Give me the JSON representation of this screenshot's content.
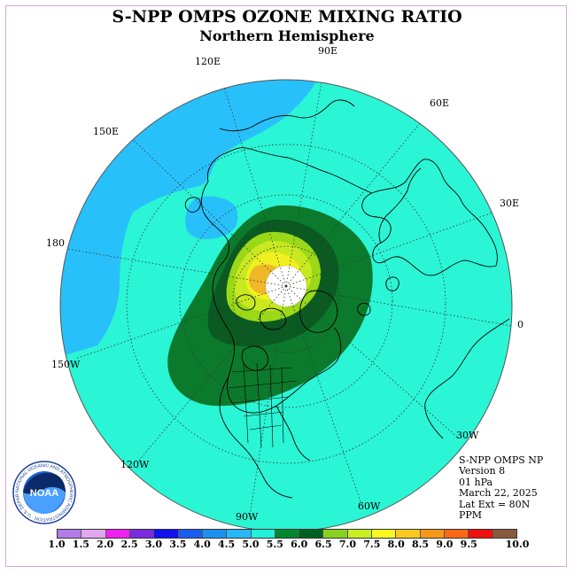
{
  "title": "S-NPP OMPS OZONE MIXING RATIO",
  "subtitle": "Northern Hemisphere",
  "longitude_labels": {
    "lon_90e": "90E",
    "lon_60e": "60E",
    "lon_30e": "30E",
    "lon_0": "0",
    "lon_30w": "30W",
    "lon_60w": "60W",
    "lon_90w": "90W",
    "lon_120w": "120W",
    "lon_150w": "150W",
    "lon_180": "180",
    "lon_150e": "150E",
    "lon_120e": "120E"
  },
  "info": {
    "instrument": "S-NPP OMPS NP",
    "version": "Version 8",
    "level": "01 hPa",
    "date": "March 22, 2025",
    "lat_ext": "Lat Ext = 80N",
    "units": "PPM"
  },
  "logo": {
    "text": "NOAA",
    "ring_text": "NATIONAL OCEANIC AND ATMOSPHERIC ADMINISTRATION · U.S. DEPARTMENT OF COMMERCE"
  },
  "colorbar": {
    "labels": [
      "1.0",
      "1.5",
      "2.0",
      "2.5",
      "3.0",
      "3.5",
      "4.0",
      "4.5",
      "5.0",
      "5.5",
      "6.0",
      "6.5",
      "7.0",
      "7.5",
      "8.0",
      "8.5",
      "9.0",
      "9.5",
      "10.0"
    ],
    "colors": [
      "#b47ae6",
      "#e0a8f0",
      "#f020f0",
      "#7a2be0",
      "#1010f0",
      "#1a5ef0",
      "#1e90f0",
      "#28b8f8",
      "#22f0d8",
      "#008830",
      "#006020",
      "#88d020",
      "#c8f020",
      "#f8f820",
      "#f8c820",
      "#f89818",
      "#f86818",
      "#f01010",
      "#8b5a3c"
    ]
  },
  "map_colors": {
    "ocean_teal": "#2af5d5",
    "light_blue": "#28c0fa",
    "green_dark": "#0a5a22",
    "green_mid": "#0c7a2c",
    "yellow_green": "#c8e820",
    "lime": "#9ad818",
    "yellow": "#f0f020",
    "orange": "#f0b828",
    "pole_white": "#ffffff"
  }
}
